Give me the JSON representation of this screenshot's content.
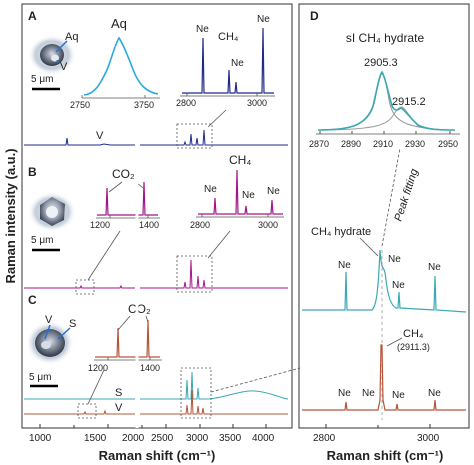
{
  "y_axis_label": "Raman intensity (a.u.)",
  "x_axis_label": "Raman shift (cm⁻¹)",
  "scale_bar": "5 μm",
  "left_ticks": [
    "1000",
    "1500",
    "2000",
    "2500",
    "3000",
    "3500",
    "4000"
  ],
  "right_ticks": [
    "2800",
    "3000"
  ],
  "panel_a": {
    "letter": "A",
    "aq_micro": "Aq",
    "v_micro": "V",
    "aq_peak": "Aq",
    "inset_ticks": [
      "2750",
      "3750"
    ],
    "ch4_inset": [
      "Ne",
      "CH₄",
      "Ne",
      "Ne"
    ],
    "ch4_inset_ticks": [
      "2800",
      "3000"
    ],
    "main_v": "V"
  },
  "panel_b": {
    "letter": "B",
    "co2": "CO₂",
    "co2_ticks": [
      "1200",
      "1400"
    ],
    "ch4": "CH₄",
    "ne_labels": [
      "Ne",
      "Ne",
      "Ne"
    ],
    "ch4_ticks": [
      "2800",
      "3000"
    ]
  },
  "panel_c": {
    "letter": "C",
    "v_micro": "V",
    "s_micro": "S",
    "co2": "CO₂",
    "co2_ticks": [
      "1200",
      "1400"
    ],
    "trace_s": "S",
    "trace_v": "V"
  },
  "panel_d": {
    "letter": "D",
    "title": "sI CH₄ hydrate",
    "peak1": "2905.3",
    "peak2": "2915.2",
    "inset_ticks": [
      "2870",
      "2890",
      "2910",
      "2930",
      "2950"
    ],
    "peak_fitting": "Peak fitting",
    "hydrate_label": "CH₄ hydrate",
    "ne_top": [
      "Ne",
      "Ne",
      "Ne",
      "Ne"
    ],
    "ch4_label": "CH₄",
    "ch4_value": "(2911.3)",
    "ne_bottom": [
      "Ne",
      "Ne",
      "Ne",
      "Ne"
    ]
  },
  "colors": {
    "panel_a": "#1f2a8a",
    "aq_spectrum": "#2aa9e0",
    "panel_b": "#a3168a",
    "panel_c_s": "#3aa9b3",
    "panel_c_v": "#b5563a",
    "fit_gray": "#9a9a9a"
  }
}
